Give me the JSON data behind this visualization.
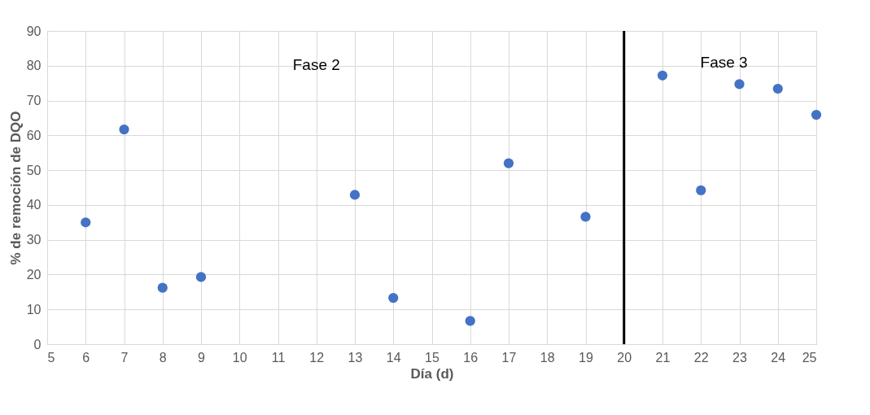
{
  "chart_data": {
    "type": "scatter",
    "xlabel": "Día (d)",
    "ylabel": "% de remoción de DQO",
    "x": [
      6,
      7,
      8,
      9,
      13,
      14,
      16,
      17,
      19,
      21,
      22,
      23,
      24,
      25
    ],
    "series": [
      {
        "color": "#4472c4",
        "values": [
          35.0,
          61.7,
          16.2,
          19.3,
          42.9,
          13.3,
          6.7,
          52.0,
          36.6,
          77.2,
          44.2,
          74.7,
          73.4,
          65.9
        ]
      }
    ],
    "xlim": [
      5,
      25
    ],
    "xticks": [
      5,
      6,
      7,
      8,
      9,
      10,
      11,
      12,
      13,
      14,
      15,
      16,
      17,
      18,
      19,
      20,
      21,
      22,
      23,
      24,
      25
    ],
    "ylim": [
      0,
      90
    ],
    "yticks": [
      0,
      10,
      20,
      30,
      40,
      50,
      60,
      70,
      80,
      90
    ],
    "ref_lines": [
      {
        "axis": "x",
        "value": 20,
        "label": null,
        "color": "#000000"
      }
    ],
    "annotations": [
      "Fase 2",
      "Fase 3"
    ],
    "grid": true,
    "marker": "circle"
  }
}
